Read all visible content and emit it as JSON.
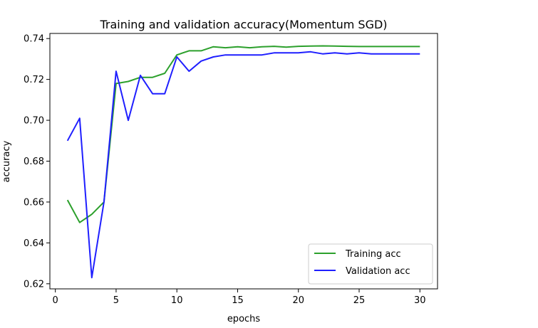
{
  "chart_data": {
    "type": "line",
    "title": "Training and validation accuracy(Momentum SGD)",
    "xlabel": "epochs",
    "ylabel": "accuracy",
    "xlim": [
      -0.45,
      31.45
    ],
    "ylim": [
      0.6175,
      0.7425
    ],
    "xticks": [
      0,
      5,
      10,
      15,
      20,
      25,
      30
    ],
    "yticks": [
      0.62,
      0.64,
      0.66,
      0.68,
      0.7,
      0.72,
      0.74
    ],
    "x": [
      1,
      2,
      3,
      4,
      5,
      6,
      7,
      8,
      9,
      10,
      11,
      12,
      13,
      14,
      15,
      16,
      17,
      18,
      19,
      20,
      21,
      22,
      23,
      24,
      25,
      26,
      27,
      28,
      29,
      30
    ],
    "series": [
      {
        "name": "Training acc",
        "color": "#2ca02c",
        "values": [
          0.661,
          0.65,
          0.654,
          0.66,
          0.718,
          0.719,
          0.721,
          0.721,
          0.723,
          0.732,
          0.734,
          0.734,
          0.736,
          0.7355,
          0.736,
          0.7355,
          0.736,
          0.7362,
          0.7358,
          0.7362,
          0.7363,
          0.7364,
          0.7363,
          0.7362,
          0.7361,
          0.7361,
          0.7361,
          0.7361,
          0.7361,
          0.7361
        ]
      },
      {
        "name": "Validation acc",
        "color": "#1f1fff",
        "values": [
          0.69,
          0.701,
          0.623,
          0.66,
          0.724,
          0.7,
          0.722,
          0.713,
          0.713,
          0.731,
          0.724,
          0.729,
          0.731,
          0.732,
          0.732,
          0.732,
          0.732,
          0.733,
          0.733,
          0.733,
          0.7335,
          0.7325,
          0.733,
          0.7325,
          0.733,
          0.7325,
          0.7325,
          0.7325,
          0.7325,
          0.7325
        ]
      }
    ],
    "legend": "lower-right",
    "grid": false
  }
}
